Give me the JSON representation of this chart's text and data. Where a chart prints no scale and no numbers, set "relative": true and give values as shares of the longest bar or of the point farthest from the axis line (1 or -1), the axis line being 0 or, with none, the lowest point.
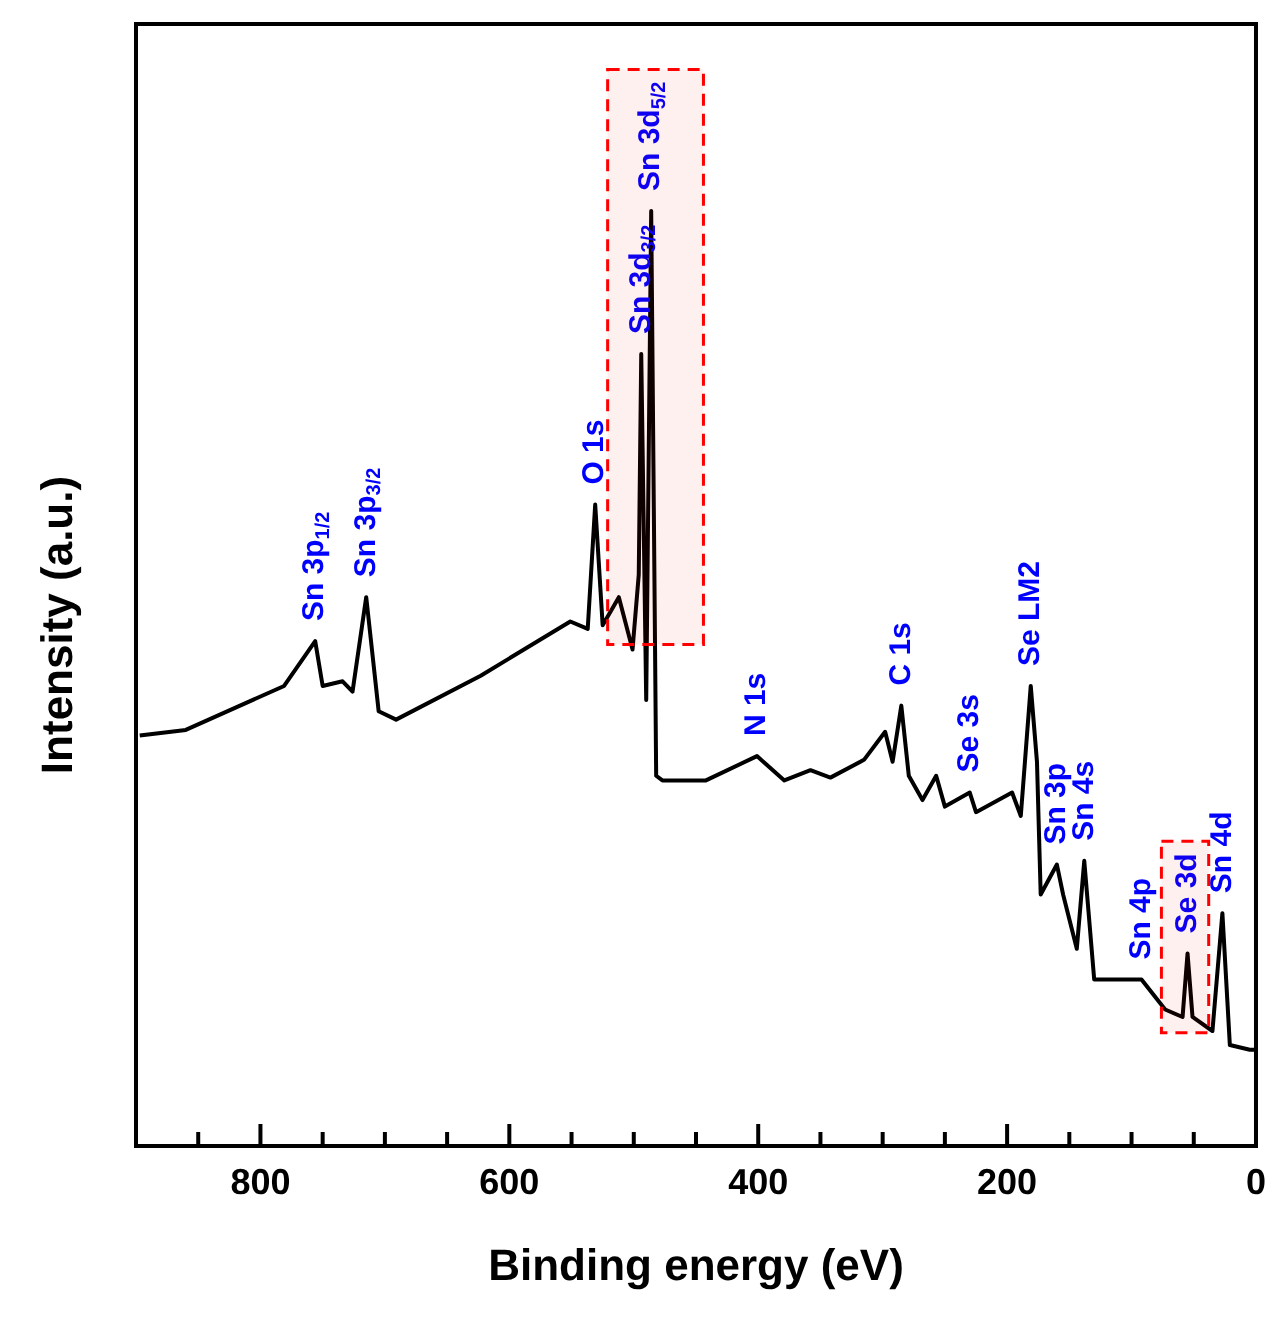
{
  "chart_data": {
    "type": "line",
    "xlabel": "Binding energy (eV)",
    "ylabel": "Intensity (a.u.)",
    "relative": true,
    "marker": "none",
    "line_style": "solid",
    "legend": false,
    "grid": false,
    "xlim": [
      900,
      0
    ],
    "xticks": [
      {
        "value": 850,
        "label": null
      },
      800,
      {
        "value": 750,
        "label": null
      },
      {
        "value": 700,
        "label": null
      },
      {
        "value": 650,
        "label": null
      },
      600,
      {
        "value": 550,
        "label": null
      },
      {
        "value": 500,
        "label": null
      },
      {
        "value": 450,
        "label": null
      },
      400,
      {
        "value": 350,
        "label": null
      },
      {
        "value": 300,
        "label": null
      },
      {
        "value": 250,
        "label": null
      },
      200,
      {
        "value": 150,
        "label": null
      },
      {
        "value": 100,
        "label": null
      },
      {
        "value": 50,
        "label": null
      },
      0
    ],
    "x": [
      897,
      860,
      781,
      756,
      750,
      734,
      726,
      715,
      705,
      691,
      623,
      551,
      537,
      531,
      525,
      512,
      501,
      496,
      494,
      490,
      486,
      482,
      477,
      442,
      401,
      379,
      358,
      342,
      315,
      298,
      292,
      285,
      279,
      268,
      257,
      250,
      230,
      225,
      196,
      189,
      181,
      176,
      173,
      160,
      155,
      144,
      138,
      130,
      92,
      73,
      59,
      55,
      51,
      35,
      27,
      21,
      5,
      1
    ],
    "series": [
      {
        "color": "#000000",
        "values": [
          0.439,
          0.445,
          0.492,
          0.54,
          0.492,
          0.497,
          0.486,
          0.587,
          0.465,
          0.456,
          0.503,
          0.561,
          0.553,
          0.686,
          0.557,
          0.587,
          0.531,
          0.611,
          0.847,
          0.477,
          1,
          0.396,
          0.391,
          0.391,
          0.417,
          0.391,
          0.402,
          0.394,
          0.413,
          0.443,
          0.411,
          0.471,
          0.396,
          0.37,
          0.396,
          0.363,
          0.378,
          0.357,
          0.378,
          0.353,
          0.492,
          0.411,
          0.269,
          0.301,
          0.269,
          0.211,
          0.305,
          0.178,
          0.178,
          0.146,
          0.138,
          0.206,
          0.138,
          0.123,
          0.249,
          0.108,
          0.103,
          0.103
        ]
      }
    ],
    "annotations": [
      {
        "text": "Sn 3p$_{1/2}$",
        "x": 756,
        "y": 0.54
      },
      {
        "text": "Sn 3p$_{3/2}$",
        "x": 715,
        "y": 0.587
      },
      {
        "text": "O 1s",
        "x": 531,
        "y": 0.686
      },
      {
        "text": "Sn 3d$_{3/2}$",
        "x": 494,
        "y": 0.847
      },
      {
        "text": "Sn 3d$_{5/2}$",
        "x": 486,
        "y": 1
      },
      {
        "text": "N 1s",
        "x": 401,
        "y": 0.417
      },
      {
        "text": "C 1s",
        "x": 285,
        "y": 0.471
      },
      {
        "text": "Se 3s",
        "x": 230,
        "y": 0.378
      },
      {
        "text": "Se LM2",
        "x": 181,
        "y": 0.492
      },
      {
        "text": "Sn 3p",
        "x": 160,
        "y": 0.301
      },
      {
        "text": "Sn 4s",
        "x": 138,
        "y": 0.305
      },
      {
        "text": "Sn 4p",
        "x": 92,
        "y": 0.178
      },
      {
        "text": "Se 3d",
        "x": 55,
        "y": 0.206
      },
      {
        "text": "Sn 4d",
        "x": 27,
        "y": 0.249
      }
    ],
    "bands": [
      {
        "axis": "x",
        "from": 521,
        "to": 444,
        "color": "#ff0000"
      },
      {
        "axis": "x",
        "from": 76,
        "to": 38,
        "color": "#ff0000"
      }
    ]
  }
}
